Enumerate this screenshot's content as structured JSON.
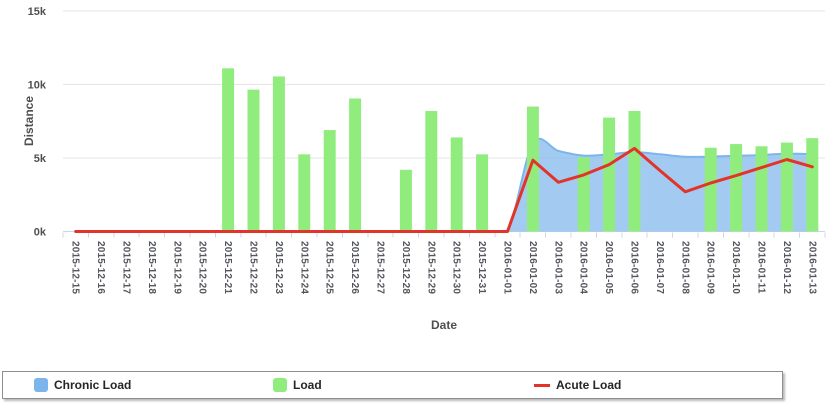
{
  "chart_data": {
    "type": "bar",
    "combo_types": [
      "area",
      "bar",
      "line"
    ],
    "title": "",
    "xlabel": "Date",
    "ylabel": "Distance",
    "ylim": [
      0,
      15000
    ],
    "grid": "horizontal",
    "legend_position": "bottom",
    "yticks": [
      {
        "v": 0,
        "label": "0k"
      },
      {
        "v": 5000,
        "label": "5k"
      },
      {
        "v": 10000,
        "label": "10k"
      },
      {
        "v": 15000,
        "label": "15k"
      }
    ],
    "categories": [
      "2015-12-15",
      "2015-12-16",
      "2015-12-17",
      "2015-12-18",
      "2015-12-19",
      "2015-12-20",
      "2015-12-21",
      "2015-12-22",
      "2015-12-23",
      "2015-12-24",
      "2015-12-25",
      "2015-12-26",
      "2015-12-27",
      "2015-12-28",
      "2015-12-29",
      "2015-12-30",
      "2015-12-31",
      "2016-01-01",
      "2016-01-02",
      "2016-01-03",
      "2016-01-04",
      "2016-01-05",
      "2016-01-06",
      "2016-01-07",
      "2016-01-08",
      "2016-01-09",
      "2016-01-10",
      "2016-01-11",
      "2016-01-12",
      "2016-01-13"
    ],
    "series": [
      {
        "name": "Chronic Load",
        "type": "area",
        "color": "#7cb5ec",
        "fill_opacity": 0.7,
        "values": [
          0,
          0,
          0,
          0,
          0,
          0,
          0,
          0,
          0,
          0,
          0,
          0,
          0,
          0,
          0,
          0,
          0,
          0,
          5980,
          5480,
          5160,
          5250,
          5400,
          5250,
          5080,
          5100,
          5150,
          5200,
          5300,
          5260
        ]
      },
      {
        "name": "Load",
        "type": "bar",
        "color": "#90ed7d",
        "values": [
          null,
          null,
          null,
          null,
          null,
          null,
          11100,
          9650,
          10550,
          5250,
          6900,
          9050,
          null,
          4200,
          8200,
          6400,
          5250,
          null,
          8500,
          null,
          5050,
          7750,
          8200,
          null,
          null,
          5700,
          5950,
          5800,
          6050,
          6350
        ]
      },
      {
        "name": "Acute Load",
        "type": "line",
        "color": "#e23428",
        "values": [
          0,
          0,
          0,
          0,
          0,
          0,
          0,
          0,
          0,
          0,
          0,
          0,
          0,
          0,
          0,
          0,
          0,
          0,
          4850,
          3350,
          3850,
          4550,
          5650,
          4150,
          2700,
          3300,
          3800,
          4350,
          4900,
          4400
        ]
      }
    ],
    "colors": {
      "gridline": "#e6e6e6",
      "axis_line": "#ccd6eb",
      "tick_mark": "#ccd6eb",
      "axis_label": "#53565c",
      "legend_border": "#8f8f8f"
    }
  },
  "legend": {
    "items": [
      {
        "label": "Chronic Load",
        "swatch": "square",
        "color": "#7cb5ec"
      },
      {
        "label": "Load",
        "swatch": "square",
        "color": "#90ed7d"
      },
      {
        "label": "Acute Load",
        "swatch": "line",
        "color": "#e23428"
      }
    ]
  }
}
